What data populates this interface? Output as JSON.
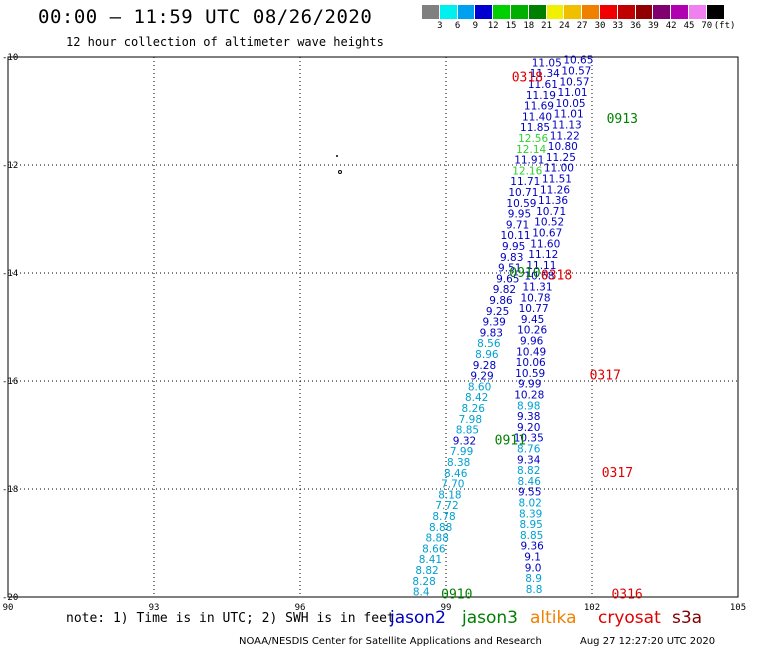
{
  "header": {
    "title": "00:00 — 11:59 UTC 08/26/2020",
    "subtitle": "12 hour collection of altimeter wave heights"
  },
  "colorbar": {
    "colors": [
      "#808080",
      "#00f0f0",
      "#00a0f0",
      "#0000d0",
      "#00d000",
      "#00b000",
      "#008000",
      "#f0f000",
      "#f0c000",
      "#f08000",
      "#f00000",
      "#c00000",
      "#900000",
      "#800070",
      "#b000b0",
      "#f080f0",
      "#000000"
    ],
    "labels": [
      "3",
      "6",
      "9",
      "12",
      "15",
      "18",
      "21",
      "24",
      "27",
      "30",
      "33",
      "36",
      "39",
      "42",
      "45",
      "70",
      "(ft)"
    ]
  },
  "axes": {
    "lon_ticks": [
      "90",
      "93",
      "96",
      "99",
      "102",
      "105"
    ],
    "lat_ticks": [
      "-10",
      "-12",
      "-14",
      "-16",
      "-18",
      "-20"
    ]
  },
  "tracks": [
    {
      "name": "cryosat 0318",
      "color": "#0000c0",
      "points": [
        [
          101.07,
          -10.1
        ],
        [
          101.03,
          -10.3
        ],
        [
          100.99,
          -10.5
        ],
        [
          100.95,
          -10.7
        ],
        [
          100.91,
          -10.9
        ],
        [
          100.87,
          -11.1
        ],
        [
          100.83,
          -11.3
        ],
        [
          100.79,
          -11.5
        ],
        [
          100.75,
          -11.7
        ],
        [
          100.71,
          -11.9
        ],
        [
          100.67,
          -12.1
        ],
        [
          100.63,
          -12.3
        ],
        [
          100.59,
          -12.5
        ],
        [
          100.55,
          -12.7
        ],
        [
          100.51,
          -12.9
        ],
        [
          100.47,
          -13.1
        ],
        [
          100.43,
          -13.3
        ],
        [
          100.39,
          -13.5
        ],
        [
          100.35,
          -13.7
        ],
        [
          100.31,
          -13.9
        ],
        [
          100.27,
          -14.1
        ],
        [
          100.2,
          -14.3
        ],
        [
          100.13,
          -14.5
        ],
        [
          100.06,
          -14.7
        ],
        [
          99.99,
          -14.9
        ],
        [
          99.93,
          -15.1
        ],
        [
          99.88,
          -15.3
        ],
        [
          99.84,
          -15.5
        ],
        [
          99.79,
          -15.7
        ],
        [
          99.74,
          -15.9
        ],
        [
          99.69,
          -16.1
        ],
        [
          99.63,
          -16.3
        ],
        [
          99.56,
          -16.5
        ],
        [
          99.5,
          -16.7
        ],
        [
          99.44,
          -16.9
        ],
        [
          99.38,
          -17.1
        ],
        [
          99.32,
          -17.3
        ],
        [
          99.26,
          -17.5
        ],
        [
          99.2,
          -17.7
        ],
        [
          99.14,
          -17.9
        ],
        [
          99.08,
          -18.1
        ],
        [
          99.02,
          -18.3
        ],
        [
          98.96,
          -18.5
        ],
        [
          98.89,
          -18.7
        ],
        [
          98.82,
          -18.9
        ],
        [
          98.75,
          -19.1
        ],
        [
          98.68,
          -19.3
        ],
        [
          98.61,
          -19.5
        ],
        [
          98.55,
          -19.7
        ],
        [
          98.49,
          -19.9
        ]
      ],
      "values": [
        "11.05",
        "11.34",
        "11.61",
        "11.19",
        "11.69",
        "11.40",
        "11.85",
        "12.56",
        "12.14",
        "11.91",
        "12.16",
        "11.71",
        "10.71",
        "10.59",
        "9.95",
        "9.71",
        "10.11",
        "9.95",
        "9.83",
        "9.51",
        "9.65",
        "9.82",
        "9.86",
        "9.25",
        "9.39",
        "9.83",
        "8.56",
        "8.96",
        "9.28",
        "9.29",
        "8.60",
        "8.42",
        "8.26",
        "7.98",
        "8.85",
        "9.32",
        "7.99",
        "8.38",
        "8.46",
        "7.70",
        "8.18",
        "7.72",
        "8.78",
        "8.88",
        "8.88",
        "8.66",
        "8.41",
        "8.82",
        "8.28",
        "8.4"
      ]
    },
    {
      "name": "jason2 0317",
      "color": "#0000c0",
      "points": [
        [
          101.72,
          -10.05
        ],
        [
          101.68,
          -10.25
        ],
        [
          101.64,
          -10.45
        ],
        [
          101.6,
          -10.65
        ],
        [
          101.56,
          -10.85
        ],
        [
          101.52,
          -11.05
        ],
        [
          101.48,
          -11.25
        ],
        [
          101.44,
          -11.45
        ],
        [
          101.4,
          -11.65
        ],
        [
          101.36,
          -11.85
        ],
        [
          101.32,
          -12.05
        ],
        [
          101.28,
          -12.25
        ],
        [
          101.24,
          -12.45
        ],
        [
          101.2,
          -12.65
        ],
        [
          101.16,
          -12.85
        ],
        [
          101.12,
          -13.05
        ],
        [
          101.08,
          -13.25
        ],
        [
          101.04,
          -13.45
        ],
        [
          101.0,
          -13.65
        ],
        [
          100.96,
          -13.85
        ],
        [
          100.92,
          -14.05
        ],
        [
          100.88,
          -14.25
        ],
        [
          100.84,
          -14.45
        ],
        [
          100.8,
          -14.65
        ],
        [
          100.78,
          -14.85
        ],
        [
          100.77,
          -15.05
        ],
        [
          100.76,
          -15.25
        ],
        [
          100.75,
          -15.45
        ],
        [
          100.74,
          -15.65
        ],
        [
          100.73,
          -15.85
        ],
        [
          100.72,
          -16.05
        ],
        [
          100.71,
          -16.25
        ],
        [
          100.7,
          -16.45
        ],
        [
          100.7,
          -16.65
        ],
        [
          100.7,
          -16.85
        ],
        [
          100.7,
          -17.05
        ],
        [
          100.7,
          -17.25
        ],
        [
          100.7,
          -17.45
        ],
        [
          100.7,
          -17.65
        ],
        [
          100.71,
          -17.85
        ],
        [
          100.72,
          -18.05
        ],
        [
          100.73,
          -18.25
        ],
        [
          100.74,
          -18.45
        ],
        [
          100.75,
          -18.65
        ],
        [
          100.76,
          -18.85
        ],
        [
          100.77,
          -19.05
        ],
        [
          100.78,
          -19.25
        ],
        [
          100.79,
          -19.45
        ],
        [
          100.8,
          -19.65
        ],
        [
          100.81,
          -19.85
        ]
      ],
      "values": [
        "10.65",
        "10.57",
        "10.57",
        "11.01",
        "10.05",
        "11.01",
        "11.13",
        "11.22",
        "10.80",
        "11.25",
        "11.00",
        "11.51",
        "11.26",
        "11.36",
        "10.71",
        "10.52",
        "10.67",
        "11.60",
        "11.12",
        "11.11",
        "10.68",
        "11.31",
        "10.78",
        "10.77",
        "9.45",
        "10.26",
        "9.96",
        "10.49",
        "10.06",
        "10.59",
        "9.99",
        "10.28",
        "8.98",
        "9.38",
        "9.20",
        "10.35",
        "8.76",
        "9.34",
        "8.82",
        "8.46",
        "9.55",
        "8.02",
        "8.39",
        "8.95",
        "8.85",
        "9.36",
        "9.1",
        "9.0",
        "8.9",
        "8.8"
      ]
    }
  ],
  "pass_labels": [
    {
      "text": "0318",
      "color": "#e00000",
      "lon": 100.35,
      "lat": -10.38
    },
    {
      "text": "0913",
      "color": "#008000",
      "lon": 102.3,
      "lat": -11.15
    },
    {
      "text": "0910",
      "color": "#008000",
      "lon": 100.3,
      "lat": -14.0
    },
    {
      "text": "0318",
      "color": "#e00000",
      "lon": 100.95,
      "lat": -14.05
    },
    {
      "text": "0317",
      "color": "#e00000",
      "lon": 101.95,
      "lat": -15.9
    },
    {
      "text": "0911",
      "color": "#008000",
      "lon": 100.0,
      "lat": -17.1
    },
    {
      "text": "0317",
      "color": "#e00000",
      "lon": 102.2,
      "lat": -17.7
    },
    {
      "text": "0910",
      "color": "#008000",
      "lon": 98.9,
      "lat": -19.95
    },
    {
      "text": "0316",
      "color": "#e00000",
      "lon": 102.4,
      "lat": -19.95
    }
  ],
  "footer": {
    "note": "note: 1) Time is in UTC; 2) SWH is in feet",
    "legend": [
      {
        "label": "jason2",
        "color": "#0000c0"
      },
      {
        "label": "jason3",
        "color": "#008000"
      },
      {
        "label": "altika",
        "color": "#f08000"
      },
      {
        "label": "cryosat",
        "color": "#e00000"
      },
      {
        "label": "s3a",
        "color": "#800000"
      }
    ],
    "credit": "NOAA/NESDIS Center for Satellite Applications and Research",
    "timestamp": "Aug 27 12:27:20 UTC 2020"
  }
}
